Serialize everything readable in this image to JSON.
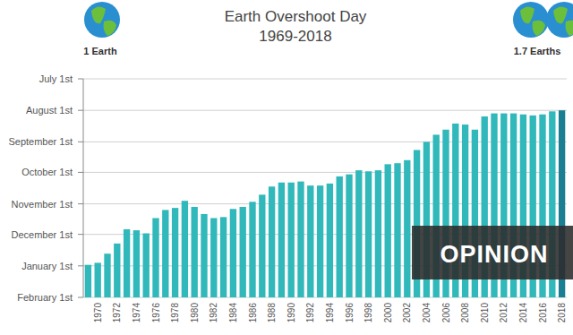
{
  "chart_data": {
    "type": "bar",
    "title": "Earth Overshoot Day",
    "subtitle": "1969-2018",
    "annotations": [
      "1 Earth",
      "1.7 Earths",
      "OPINION"
    ],
    "categories": [
      null,
      "1970",
      null,
      "1972",
      null,
      "1974",
      null,
      "1976",
      null,
      "1978",
      null,
      "1980",
      null,
      "1982",
      null,
      "1984",
      null,
      "1986",
      null,
      "1988",
      null,
      "1990",
      null,
      "1992",
      null,
      "1994",
      null,
      "1996",
      null,
      "1998",
      null,
      "2000",
      null,
      "2002",
      null,
      "2004",
      null,
      "2006",
      null,
      "2008",
      null,
      "2010",
      null,
      "2012",
      null,
      "2014",
      null,
      "2016",
      null,
      "2018"
    ],
    "values": [
      365,
      363,
      354,
      344,
      330,
      331,
      334,
      319,
      311,
      309,
      302,
      308,
      315,
      319,
      318,
      310,
      308,
      303,
      296,
      288,
      284,
      284,
      283,
      287,
      287,
      285,
      278,
      276,
      272,
      273,
      272,
      266,
      265,
      262,
      252,
      244,
      237,
      232,
      226,
      227,
      232,
      219,
      216,
      216,
      216,
      217,
      218,
      217,
      214,
      213
    ],
    "colors": [
      "#30b8ba",
      "#30b8ba",
      "#30b8ba",
      "#30b8ba",
      "#30b8ba",
      "#30b8ba",
      "#30b8ba",
      "#30b8ba",
      "#30b8ba",
      "#30b8ba",
      "#30b8ba",
      "#30b8ba",
      "#30b8ba",
      "#30b8ba",
      "#30b8ba",
      "#30b8ba",
      "#30b8ba",
      "#30b8ba",
      "#30b8ba",
      "#30b8ba",
      "#30b8ba",
      "#30b8ba",
      "#30b8ba",
      "#30b8ba",
      "#30b8ba",
      "#30b8ba",
      "#30b8ba",
      "#30b8ba",
      "#30b8ba",
      "#30b8ba",
      "#30b8ba",
      "#30b8ba",
      "#30b8ba",
      "#30b8ba",
      "#30b8ba",
      "#30b8ba",
      "#30b8ba",
      "#30b8ba",
      "#30b8ba",
      "#30b8ba",
      "#30b8ba",
      "#30b8ba",
      "#30b8ba",
      "#30b8ba",
      "#30b8ba",
      "#30b8ba",
      "#30b8ba",
      "#30b8ba",
      "#30b8ba",
      "#1b7f93"
    ],
    "ylim": [
      397,
      182
    ],
    "yticks": [
      {
        "value": 182,
        "label": "July 1st"
      },
      {
        "value": 213,
        "label": "August 1st"
      },
      {
        "value": 244,
        "label": "September 1st"
      },
      {
        "value": 274,
        "label": "October 1st"
      },
      {
        "value": 305,
        "label": "November 1st"
      },
      {
        "value": 335,
        "label": "December 1st"
      },
      {
        "value": 366,
        "label": "January 1st"
      },
      {
        "value": 397,
        "label": "February 1st"
      }
    ],
    "grid": true
  }
}
